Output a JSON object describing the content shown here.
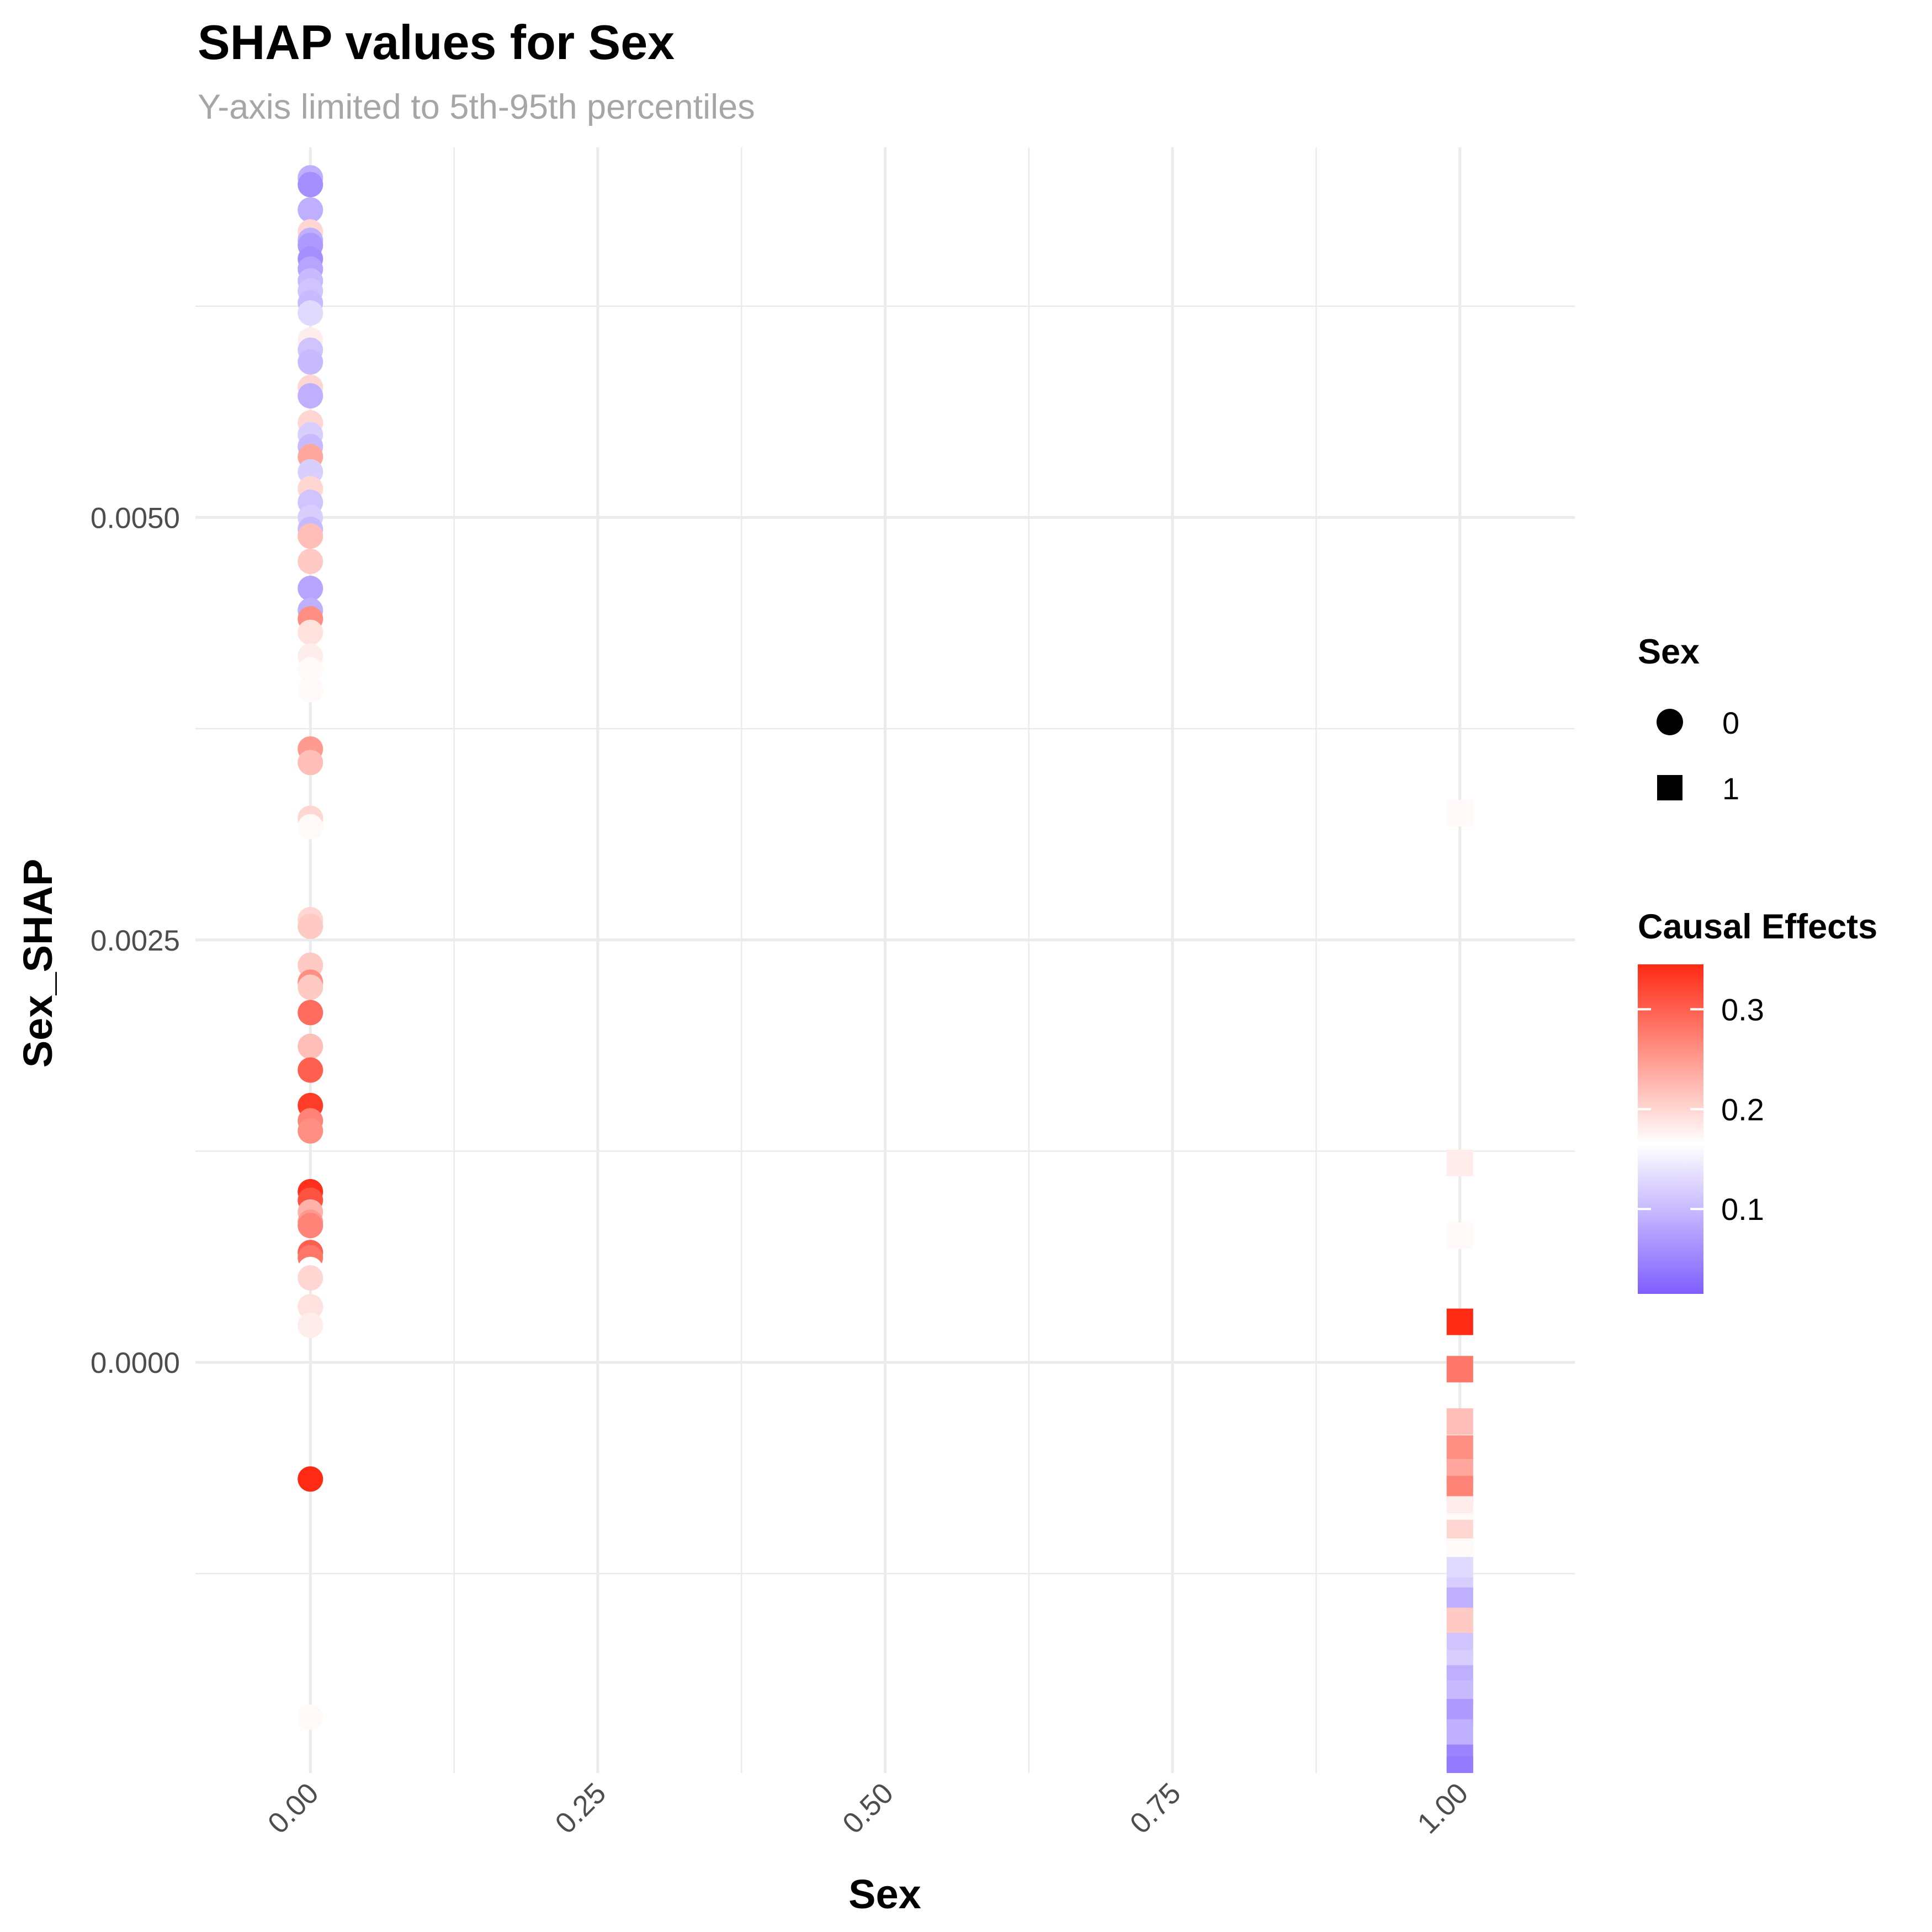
{
  "chart_data": {
    "type": "scatter",
    "title": "SHAP values for Sex",
    "subtitle": "Y-axis limited to 5th-95th percentiles",
    "xlabel": "Sex",
    "ylabel": "Sex_SHAP",
    "xlim": [
      -0.1,
      1.1
    ],
    "ylim": [
      -0.00243,
      0.00719
    ],
    "x_ticks": [
      {
        "value": 0.0,
        "label": "0.00"
      },
      {
        "value": 0.25,
        "label": "0.25"
      },
      {
        "value": 0.5,
        "label": "0.50"
      },
      {
        "value": 0.75,
        "label": "0.75"
      },
      {
        "value": 1.0,
        "label": "1.00"
      }
    ],
    "y_ticks": [
      {
        "value": 0.0,
        "label": "0.0000"
      },
      {
        "value": 0.0025,
        "label": "0.0025"
      },
      {
        "value": 0.005,
        "label": "0.0050"
      }
    ],
    "grid": true,
    "shape_legend": {
      "title": "Sex",
      "items": [
        {
          "label": "0",
          "shape": "circle"
        },
        {
          "label": "1",
          "shape": "square"
        }
      ]
    },
    "color_legend": {
      "title": "Causal Effects",
      "range": [
        0.015,
        0.345
      ],
      "mid": 0.165,
      "low_color": "#7f5fff",
      "mid_color": "#ffffff",
      "high_color": "#ff2a14",
      "ticks": [
        {
          "value": 0.1,
          "label": "0.1"
        },
        {
          "value": 0.2,
          "label": "0.2"
        },
        {
          "value": 0.3,
          "label": "0.3"
        }
      ]
    },
    "series": [
      {
        "name": "0",
        "shape": "circle",
        "x": 0,
        "points": [
          {
            "y": 0.00701,
            "c": 0.09
          },
          {
            "y": 0.00697,
            "c": 0.06
          },
          {
            "y": 0.00682,
            "c": 0.09
          },
          {
            "y": 0.00669,
            "c": 0.2
          },
          {
            "y": 0.00664,
            "c": 0.09
          },
          {
            "y": 0.00661,
            "c": 0.07
          },
          {
            "y": 0.00653,
            "c": 0.06
          },
          {
            "y": 0.00647,
            "c": 0.08
          },
          {
            "y": 0.0064,
            "c": 0.1
          },
          {
            "y": 0.00634,
            "c": 0.11
          },
          {
            "y": 0.00627,
            "c": 0.1
          },
          {
            "y": 0.00621,
            "c": 0.13
          },
          {
            "y": 0.00605,
            "c": 0.18
          },
          {
            "y": 0.00599,
            "c": 0.11
          },
          {
            "y": 0.00592,
            "c": 0.1
          },
          {
            "y": 0.00577,
            "c": 0.2
          },
          {
            "y": 0.00572,
            "c": 0.09
          },
          {
            "y": 0.00556,
            "c": 0.2
          },
          {
            "y": 0.00549,
            "c": 0.12
          },
          {
            "y": 0.00542,
            "c": 0.1
          },
          {
            "y": 0.00536,
            "c": 0.24
          },
          {
            "y": 0.00527,
            "c": 0.12
          },
          {
            "y": 0.00517,
            "c": 0.2
          },
          {
            "y": 0.00509,
            "c": 0.11
          },
          {
            "y": 0.005,
            "c": 0.12
          },
          {
            "y": 0.00493,
            "c": 0.1
          },
          {
            "y": 0.00489,
            "c": 0.22
          },
          {
            "y": 0.00474,
            "c": 0.21
          },
          {
            "y": 0.00458,
            "c": 0.08
          },
          {
            "y": 0.00445,
            "c": 0.09
          },
          {
            "y": 0.0044,
            "c": 0.26
          },
          {
            "y": 0.00432,
            "c": 0.19
          },
          {
            "y": 0.00418,
            "c": 0.18
          },
          {
            "y": 0.0041,
            "c": 0.17
          },
          {
            "y": 0.00398,
            "c": 0.17
          },
          {
            "y": 0.00363,
            "c": 0.25
          },
          {
            "y": 0.00355,
            "c": 0.22
          },
          {
            "y": 0.00322,
            "c": 0.2
          },
          {
            "y": 0.00317,
            "c": 0.17
          },
          {
            "y": 0.00262,
            "c": 0.2
          },
          {
            "y": 0.00258,
            "c": 0.21
          },
          {
            "y": 0.00235,
            "c": 0.21
          },
          {
            "y": 0.00225,
            "c": 0.26
          },
          {
            "y": 0.00222,
            "c": 0.21
          },
          {
            "y": 0.00207,
            "c": 0.29
          },
          {
            "y": 0.00187,
            "c": 0.22
          },
          {
            "y": 0.00173,
            "c": 0.3
          },
          {
            "y": 0.00152,
            "c": 0.33
          },
          {
            "y": 0.00143,
            "c": 0.27
          },
          {
            "y": 0.00137,
            "c": 0.26
          },
          {
            "y": 0.00101,
            "c": 0.34
          },
          {
            "y": 0.00096,
            "c": 0.31
          },
          {
            "y": 0.00089,
            "c": 0.23
          },
          {
            "y": 0.00083,
            "c": 0.25
          },
          {
            "y": 0.00081,
            "c": 0.27
          },
          {
            "y": 0.00065,
            "c": 0.3
          },
          {
            "y": 0.00062,
            "c": 0.28
          },
          {
            "y": 0.00055,
            "c": 0.165
          },
          {
            "y": 0.0005,
            "c": 0.2
          },
          {
            "y": 0.00033,
            "c": 0.19
          },
          {
            "y": 0.00022,
            "c": 0.18
          },
          {
            "y": -0.00069,
            "c": 0.345
          },
          {
            "y": -0.0021,
            "c": 0.17
          }
        ]
      },
      {
        "name": "1",
        "shape": "square",
        "x": 1,
        "points": [
          {
            "y": 0.00325,
            "c": 0.17
          },
          {
            "y": 0.00118,
            "c": 0.18
          },
          {
            "y": 0.00075,
            "c": 0.17
          },
          {
            "y": 0.00024,
            "c": 0.345
          },
          {
            "y": -4e-05,
            "c": 0.28
          },
          {
            "y": -0.00035,
            "c": 0.22
          },
          {
            "y": -0.00051,
            "c": 0.26
          },
          {
            "y": -0.00065,
            "c": 0.24
          },
          {
            "y": -0.00075,
            "c": 0.27
          },
          {
            "y": -0.00087,
            "c": 0.18
          },
          {
            "y": -0.00097,
            "c": 0.17
          },
          {
            "y": -0.00101,
            "c": 0.2
          },
          {
            "y": -0.00112,
            "c": 0.17
          },
          {
            "y": -0.00123,
            "c": 0.13
          },
          {
            "y": -0.00135,
            "c": 0.12
          },
          {
            "y": -0.00141,
            "c": 0.09
          },
          {
            "y": -0.00153,
            "c": 0.21
          },
          {
            "y": -0.00168,
            "c": 0.11
          },
          {
            "y": -0.00178,
            "c": 0.12
          },
          {
            "y": -0.00187,
            "c": 0.09
          },
          {
            "y": -0.00196,
            "c": 0.1
          },
          {
            "y": -0.00207,
            "c": 0.07
          },
          {
            "y": -0.00219,
            "c": 0.09
          },
          {
            "y": -0.00234,
            "c": 0.05
          },
          {
            "y": -0.00241,
            "c": 0.04
          },
          {
            "y": -0.00254,
            "c": 0.03
          },
          {
            "y": -0.00265,
            "c": 0.03
          },
          {
            "y": -0.00277,
            "c": 0.03
          },
          {
            "y": -0.00288,
            "c": 0.03
          },
          {
            "y": -0.00298,
            "c": 0.03
          },
          {
            "y": -0.00307,
            "c": 0.03
          },
          {
            "y": -0.00316,
            "c": 0.03
          }
        ]
      }
    ]
  }
}
